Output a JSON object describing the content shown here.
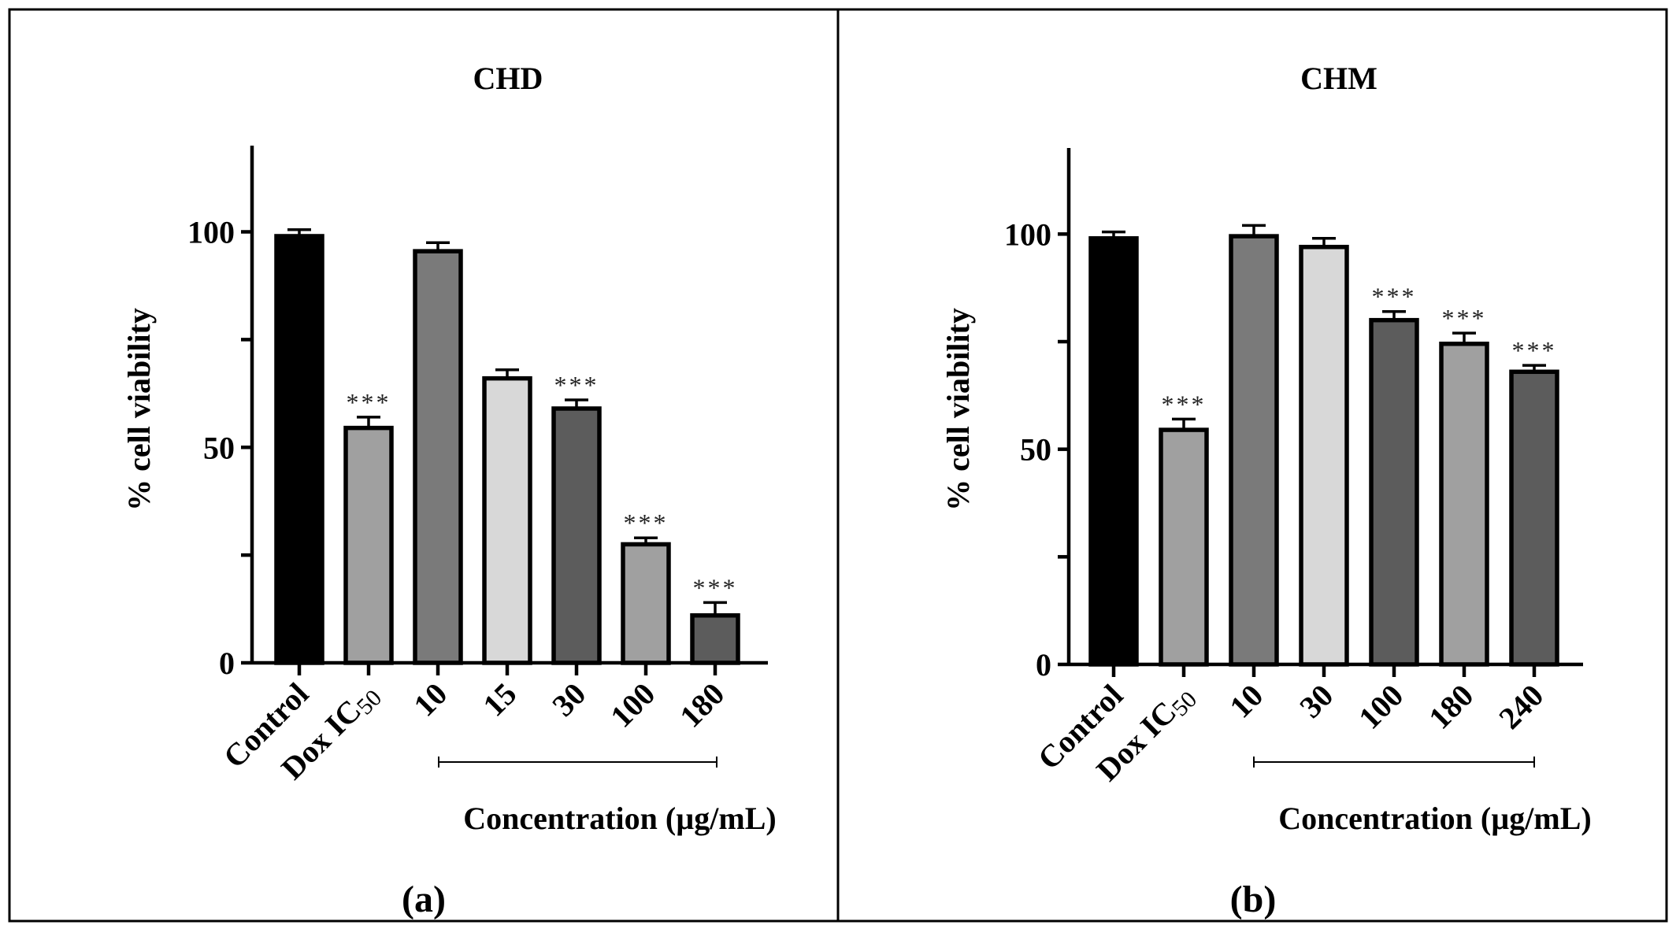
{
  "chart_data": [
    {
      "type": "bar",
      "title": "CHD",
      "ylabel": "% cell viability",
      "xlabel": "Concentration (µg/mL)",
      "panel_label": "(a)",
      "ylim": [
        0,
        120
      ],
      "yticks": [
        0,
        50,
        100
      ],
      "categories": [
        {
          "text": "Control",
          "sub": ""
        },
        {
          "text": "Dox IC",
          "sub": "50"
        },
        {
          "text": "10",
          "sub": ""
        },
        {
          "text": "15",
          "sub": ""
        },
        {
          "text": "30",
          "sub": ""
        },
        {
          "text": "100",
          "sub": ""
        },
        {
          "text": "180",
          "sub": ""
        }
      ],
      "values": [
        99,
        54.5,
        95.5,
        66,
        59,
        27.5,
        11
      ],
      "errors": [
        1.5,
        2.5,
        2,
        2,
        2,
        1.5,
        3
      ],
      "significance": [
        "",
        "***",
        "",
        "",
        "***",
        "***",
        "***"
      ],
      "colors": [
        "#000000",
        "#a0a0a0",
        "#7a7a7a",
        "#d8d8d8",
        "#5c5c5c",
        "#a0a0a0",
        "#5c5c5c"
      ],
      "concentration_range": [
        2,
        6
      ]
    },
    {
      "type": "bar",
      "title": "CHM",
      "ylabel": "% cell viability",
      "xlabel": "Concentration (µg/mL)",
      "panel_label": "(b)",
      "ylim": [
        0,
        120
      ],
      "yticks": [
        0,
        50,
        100
      ],
      "categories": [
        {
          "text": "Control",
          "sub": ""
        },
        {
          "text": "Dox IC",
          "sub": "50"
        },
        {
          "text": "10",
          "sub": ""
        },
        {
          "text": "30",
          "sub": ""
        },
        {
          "text": "100",
          "sub": ""
        },
        {
          "text": "180",
          "sub": ""
        },
        {
          "text": "240",
          "sub": ""
        }
      ],
      "values": [
        99,
        54.5,
        99.5,
        97,
        80,
        74.5,
        68
      ],
      "errors": [
        1.5,
        2.5,
        2.5,
        2,
        2,
        2.5,
        1.5
      ],
      "significance": [
        "",
        "***",
        "",
        "",
        "***",
        "***",
        "***"
      ],
      "colors": [
        "#000000",
        "#a0a0a0",
        "#7a7a7a",
        "#d8d8d8",
        "#5c5c5c",
        "#a0a0a0",
        "#5c5c5c"
      ],
      "concentration_range": [
        2,
        6
      ]
    }
  ]
}
